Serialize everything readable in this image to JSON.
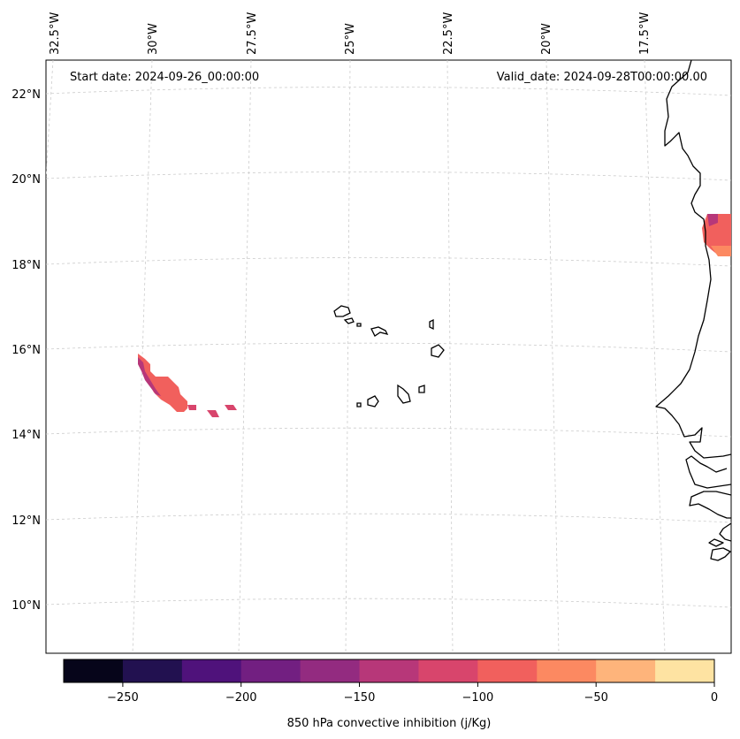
{
  "header": {
    "start_date": "Start date: 2024-09-26_00:00:00",
    "valid_date": "Valid_date: 2024-09-28T00:00:00.00"
  },
  "axes": {
    "lon_labels": [
      "32.5°W",
      "30°W",
      "27.5°W",
      "25°W",
      "22.5°W",
      "20°W",
      "17.5°W"
    ],
    "lat_labels": [
      "22°N",
      "20°N",
      "18°N",
      "16°N",
      "14°N",
      "12°N",
      "10°N"
    ]
  },
  "colorbar": {
    "label": "850 hPa convective inhibition (j/Kg)",
    "ticks": [
      "−250",
      "−200",
      "−150",
      "−100",
      "−50",
      "0"
    ],
    "colors": [
      "#06051a",
      "#221150",
      "#4f127b",
      "#721f81",
      "#932b80",
      "#b73779",
      "#d8456c",
      "#f1605d",
      "#fc8961",
      "#feb47b",
      "#fee3a2"
    ]
  },
  "chart_data": {
    "type": "heatmap",
    "title": "850 hPa convective inhibition (j/Kg)",
    "lon_range": [
      -33,
      -16
    ],
    "lat_range": [
      9,
      23
    ],
    "value_range": [
      -275,
      0
    ],
    "regions": [
      {
        "name": "west-ocean-patch",
        "approx_lon": [
          -29.9,
          -27.4
        ],
        "approx_lat": [
          14.4,
          15.9
        ],
        "approx_value": -110
      },
      {
        "name": "africa-coast-patch",
        "approx_lon": [
          -16.6,
          -15.9
        ],
        "approx_lat": [
          18.2,
          19.2
        ],
        "approx_value": -90
      }
    ]
  }
}
